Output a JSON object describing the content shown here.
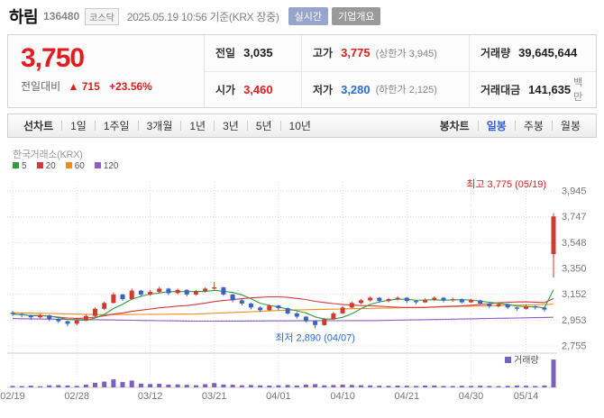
{
  "header": {
    "title": "하림",
    "code": "136480",
    "market_badge": "코스닥",
    "timestamp": "2025.05.19 10:56 기준(KRX 장중)",
    "realtime_badge": "실시간",
    "company_overview_badge": "기업개요"
  },
  "price": {
    "current": "3,750",
    "change_label": "전일대비",
    "change_arrow": "▲",
    "change_value": "715",
    "change_percent": "+23.56%"
  },
  "summary": {
    "rows": [
      {
        "cells": [
          {
            "label": "전일",
            "value": "3,035"
          },
          {
            "label": "고가",
            "value": "3,775",
            "sub": "(상한가 3,945)"
          },
          {
            "label": "거래량",
            "value": "39,645,644"
          }
        ]
      },
      {
        "cells": [
          {
            "label": "시가",
            "value": "3,460"
          },
          {
            "label": "저가",
            "value": "3,280",
            "sub": "(하한가 2,125)"
          },
          {
            "label": "거래대금",
            "value": "141,635",
            "unit": "백만"
          }
        ]
      }
    ]
  },
  "toolbar": {
    "left_label": "선차트",
    "left_items": [
      "1일",
      "1주일",
      "3개월",
      "1년",
      "3년",
      "5년",
      "10년"
    ],
    "right_label": "봉차트",
    "right_items": [
      "일봉",
      "주봉",
      "월봉"
    ],
    "selected": "일봉"
  },
  "chart_data": {
    "type": "candlestick",
    "exchange_label": "한국거래소(KRX)",
    "ma_legend": [
      {
        "period": "5",
        "color": "#2e9e3c"
      },
      {
        "period": "20",
        "color": "#d7373f"
      },
      {
        "period": "60",
        "color": "#f08c1e"
      },
      {
        "period": "120",
        "color": "#8a5fc8"
      }
    ],
    "y_ticks": [
      3945,
      3747,
      3548,
      3350,
      3152,
      2953,
      2755
    ],
    "x_labels": [
      {
        "index": 0,
        "label": "02/19"
      },
      {
        "index": 7,
        "label": "02/28"
      },
      {
        "index": 15,
        "label": "03/12"
      },
      {
        "index": 22,
        "label": "03/21"
      },
      {
        "index": 29,
        "label": "04/01"
      },
      {
        "index": 36,
        "label": "04/10"
      },
      {
        "index": 43,
        "label": "04/21"
      },
      {
        "index": 50,
        "label": "04/30"
      },
      {
        "index": 56,
        "label": "05/14"
      }
    ],
    "annotations": {
      "high": {
        "text": "최고 3,775 (05/19)",
        "color": "#e01e1e"
      },
      "low": {
        "text": "최저 2,890 (04/07)",
        "color": "#2c6dd5",
        "index": 33,
        "value": 2890
      }
    },
    "volume_legend": {
      "label": "거래량",
      "color": "#7d5fc0"
    },
    "colors": {
      "up": "#cf3b2f",
      "down": "#3b64c0",
      "grid": "#dcdcdc",
      "axis_text": "#777",
      "pane_border": "#cccccc"
    },
    "columns": [
      "open",
      "high",
      "low",
      "close",
      "volume_millions"
    ],
    "volume_scale_max": 41,
    "candles": [
      [
        3010,
        3025,
        2985,
        3000,
        2.1
      ],
      [
        3000,
        3010,
        2975,
        2990,
        1.8
      ],
      [
        2990,
        2995,
        2955,
        2975,
        2.4
      ],
      [
        2975,
        3000,
        2965,
        2990,
        1.6
      ],
      [
        2990,
        2995,
        2945,
        2960,
        2.9
      ],
      [
        2960,
        2970,
        2930,
        2945,
        3.2
      ],
      [
        2945,
        2950,
        2905,
        2925,
        2.7
      ],
      [
        2925,
        2960,
        2915,
        2950,
        2.2
      ],
      [
        2950,
        2995,
        2945,
        2985,
        3.8
      ],
      [
        2985,
        3050,
        2980,
        3040,
        6.5
      ],
      [
        3040,
        3095,
        3030,
        3085,
        8.2
      ],
      [
        3085,
        3165,
        3080,
        3150,
        11.4
      ],
      [
        3150,
        3155,
        3100,
        3115,
        7.6
      ],
      [
        3115,
        3195,
        3110,
        3180,
        9.8
      ],
      [
        3180,
        3185,
        3135,
        3150,
        5.4
      ],
      [
        3150,
        3185,
        3140,
        3170,
        4.8
      ],
      [
        3170,
        3210,
        3160,
        3195,
        5.1
      ],
      [
        3195,
        3200,
        3145,
        3160,
        3.9
      ],
      [
        3160,
        3195,
        3150,
        3185,
        4.2
      ],
      [
        3185,
        3190,
        3135,
        3150,
        3.6
      ],
      [
        3150,
        3185,
        3140,
        3175,
        3.1
      ],
      [
        3175,
        3205,
        3165,
        3195,
        4.5
      ],
      [
        3195,
        3245,
        3185,
        3205,
        6.2
      ],
      [
        3205,
        3210,
        3140,
        3150,
        4.1
      ],
      [
        3150,
        3155,
        3090,
        3105,
        3.7
      ],
      [
        3105,
        3115,
        3065,
        3080,
        2.9
      ],
      [
        3080,
        3090,
        3035,
        3050,
        3.3
      ],
      [
        3050,
        3060,
        3015,
        3030,
        2.8
      ],
      [
        3030,
        3075,
        3025,
        3065,
        2.5
      ],
      [
        3065,
        3070,
        3030,
        3045,
        3.0
      ],
      [
        3045,
        3050,
        2995,
        3005,
        3.4
      ],
      [
        3005,
        3015,
        2965,
        2980,
        2.6
      ],
      [
        2980,
        2985,
        2935,
        2945,
        3.8
      ],
      [
        2945,
        2950,
        2890,
        2915,
        4.6
      ],
      [
        2915,
        2970,
        2910,
        2960,
        2.9
      ],
      [
        2960,
        3015,
        2955,
        3005,
        3.3
      ],
      [
        3005,
        3060,
        3000,
        3050,
        4.0
      ],
      [
        3050,
        3095,
        3045,
        3085,
        3.5
      ],
      [
        3085,
        3115,
        3075,
        3105,
        3.1
      ],
      [
        3105,
        3135,
        3095,
        3125,
        2.8
      ],
      [
        3125,
        3130,
        3085,
        3100,
        2.4
      ],
      [
        3100,
        3125,
        3090,
        3115,
        2.2
      ],
      [
        3115,
        3135,
        3105,
        3125,
        2.6
      ],
      [
        3125,
        3130,
        3085,
        3100,
        2.3
      ],
      [
        3100,
        3105,
        3075,
        3090,
        2.0
      ],
      [
        3090,
        3120,
        3085,
        3110,
        2.5
      ],
      [
        3110,
        3135,
        3100,
        3125,
        2.7
      ],
      [
        3125,
        3130,
        3090,
        3105,
        2.1
      ],
      [
        3105,
        3125,
        3095,
        3115,
        1.9
      ],
      [
        3115,
        3120,
        3080,
        3090,
        2.3
      ],
      [
        3090,
        3115,
        3085,
        3105,
        2.0
      ],
      [
        3105,
        3110,
        3070,
        3080,
        2.4
      ],
      [
        3080,
        3085,
        3045,
        3060,
        2.1
      ],
      [
        3060,
        3085,
        3050,
        3075,
        1.8
      ],
      [
        3075,
        3080,
        3040,
        3050,
        2.2
      ],
      [
        3050,
        3055,
        3025,
        3040,
        2.5
      ],
      [
        3040,
        3070,
        3035,
        3060,
        2.3
      ],
      [
        3060,
        3065,
        3035,
        3050,
        1.9
      ],
      [
        3050,
        3055,
        3020,
        3035,
        2.8
      ],
      [
        3460,
        3775,
        3280,
        3750,
        39.6
      ]
    ],
    "ma60_anchors": [
      [
        0,
        3010
      ],
      [
        10,
        2995
      ],
      [
        20,
        3000
      ],
      [
        30,
        3030
      ],
      [
        40,
        3045
      ],
      [
        50,
        3060
      ],
      [
        59,
        3075
      ]
    ],
    "ma120_anchors": [
      [
        0,
        2965
      ],
      [
        20,
        2945
      ],
      [
        40,
        2950
      ],
      [
        59,
        2975
      ]
    ]
  }
}
